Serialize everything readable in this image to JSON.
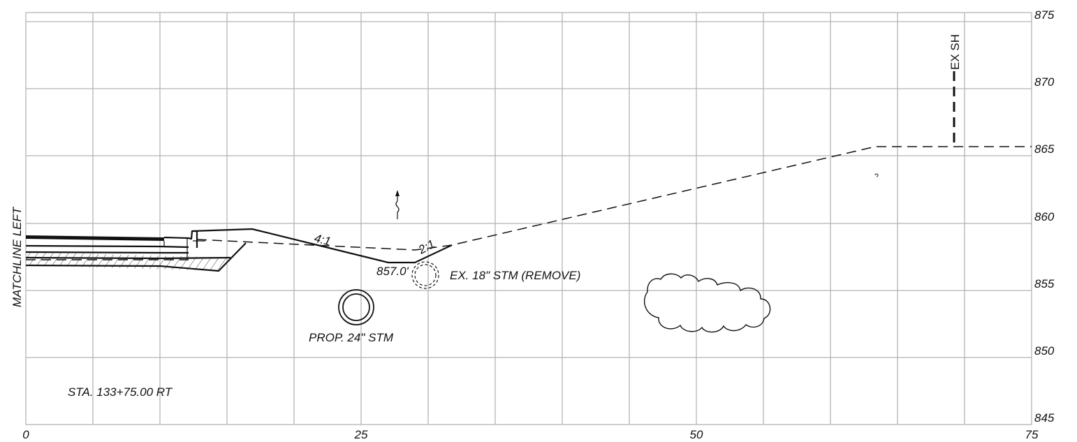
{
  "axes": {
    "x_ticks": [
      "0",
      "25",
      "50",
      "75"
    ],
    "y_ticks": [
      "845",
      "850",
      "855",
      "860",
      "865",
      "870",
      "875"
    ]
  },
  "labels": {
    "matchline": "MATCHLINE LEFT",
    "station": "STA. 133+75.00 RT",
    "slope_left": "4:1",
    "slope_right": "2:1",
    "ditch_elev": "857.0'",
    "existing_pipe": "EX. 18\" STM (REMOVE)",
    "proposed_pipe": "PROP. 24\" STM",
    "existing_structure": "EX SH"
  },
  "colors": {
    "grid": "#b4b4b4",
    "ink": "#111111",
    "background": "#ffffff"
  }
}
